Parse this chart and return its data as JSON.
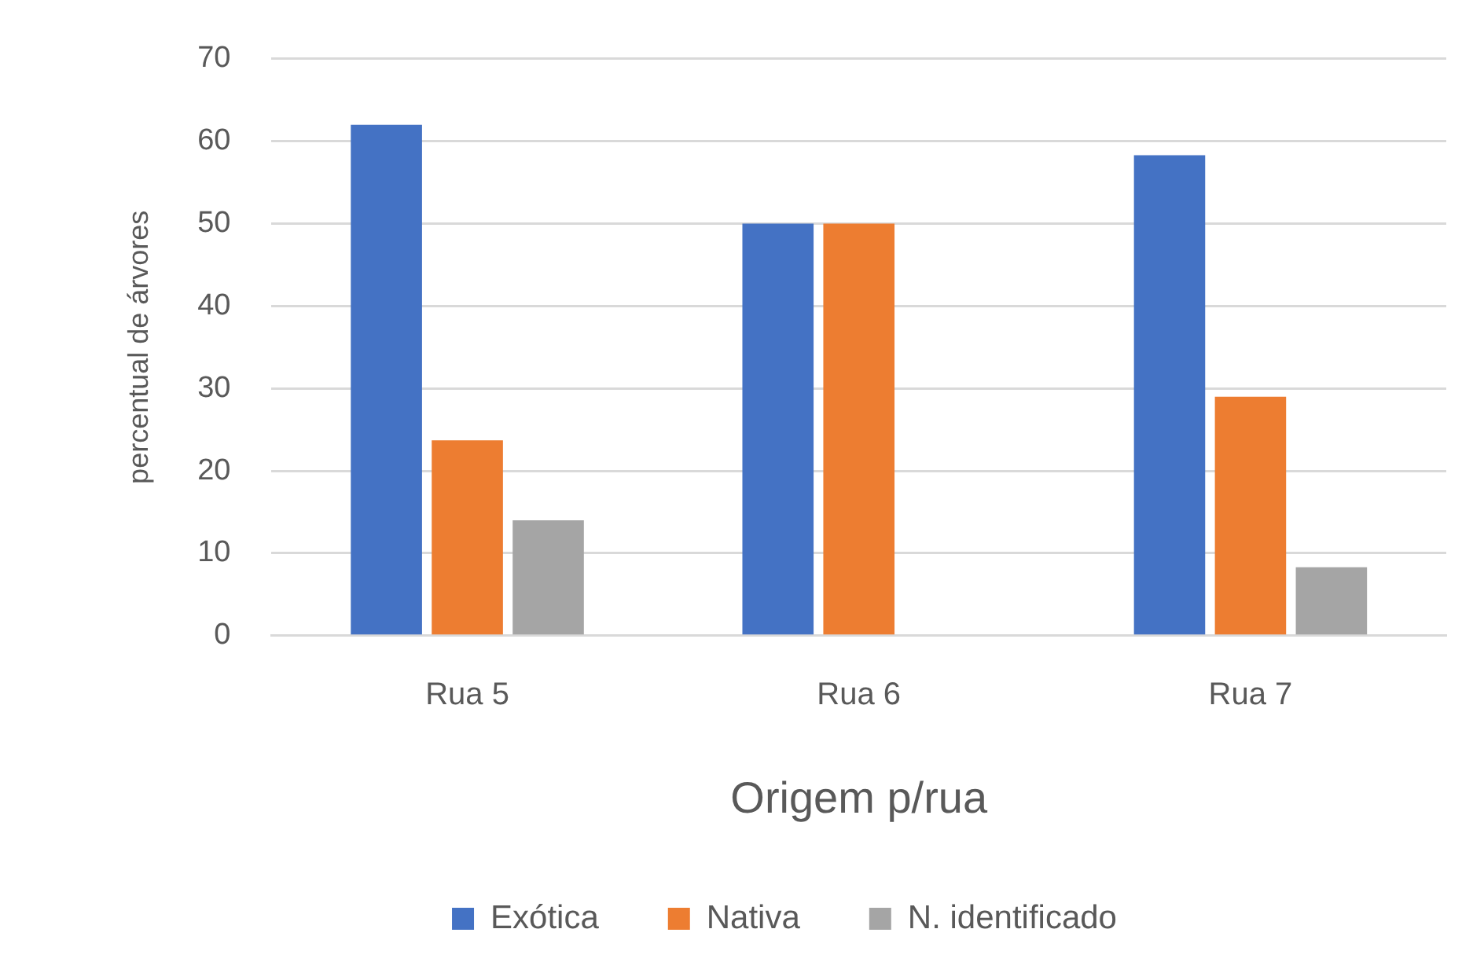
{
  "chart_data": {
    "type": "bar",
    "xlabel": "Origem p/rua",
    "ylabel": "percentual de árvores",
    "categories": [
      "Rua 5",
      "Rua 6",
      "Rua 7"
    ],
    "series": [
      {
        "name": "Exótica",
        "color": "#4472c4",
        "values": [
          62,
          50,
          58.3
        ]
      },
      {
        "name": "Nativa",
        "color": "#ed7d31",
        "values": [
          23.7,
          50,
          29
        ]
      },
      {
        "name": "N. identificado",
        "color": "#a5a5a5",
        "values": [
          14,
          0,
          8.3
        ]
      }
    ],
    "ylim": [
      0,
      70
    ],
    "yticks": [
      0,
      10,
      20,
      30,
      40,
      50,
      60,
      70
    ],
    "grid": "y",
    "legend": "bottom"
  }
}
